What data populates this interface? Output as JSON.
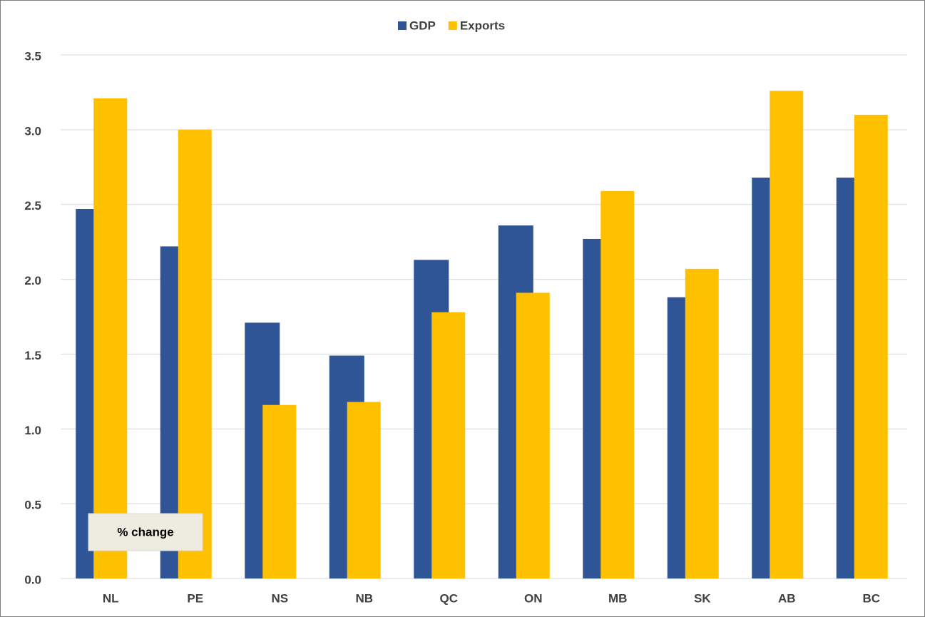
{
  "chart_data": {
    "type": "bar",
    "categories": [
      "NL",
      "PE",
      "NS",
      "NB",
      "QC",
      "ON",
      "MB",
      "SK",
      "AB",
      "BC"
    ],
    "series": [
      {
        "name": "GDP",
        "color": "#2f5597",
        "values": [
          2.47,
          2.22,
          1.71,
          1.49,
          2.13,
          2.36,
          2.27,
          1.88,
          2.68,
          2.68
        ]
      },
      {
        "name": "Exports",
        "color": "#ffc000",
        "values": [
          3.21,
          3.0,
          1.16,
          1.18,
          1.78,
          1.91,
          2.59,
          2.07,
          3.26,
          3.1
        ]
      }
    ],
    "ylim": [
      0,
      3.5
    ],
    "yticks": [
      {
        "value": 0,
        "label": "0.0"
      },
      0.5,
      {
        "value": 1,
        "label": "1.0"
      },
      1.5,
      {
        "value": 2,
        "label": "2.0"
      },
      2.5,
      {
        "value": 3,
        "label": "3.0"
      },
      3.5
    ],
    "grid": true,
    "legend": "top",
    "annotation": "% change"
  }
}
